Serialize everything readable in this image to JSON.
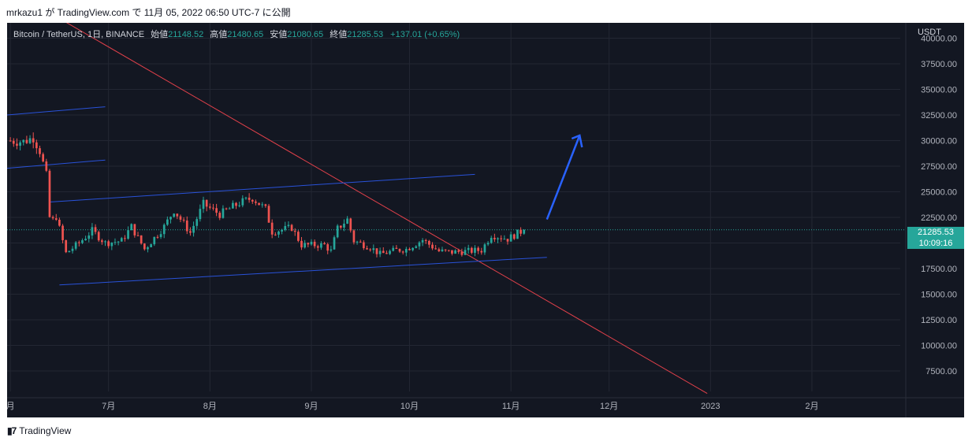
{
  "caption": "mrkazu1 が TradingView.com で 11月 05, 2022 06:50 UTC-7 に公開",
  "legend": {
    "symbol": "Bitcoin / TetherUS, 1日, BINANCE",
    "open_label": "始値",
    "open": "21148.52",
    "high_label": "高値",
    "high": "21480.65",
    "low_label": "安値",
    "low": "21080.65",
    "close_label": "終値",
    "close": "21285.53",
    "change": "+137.01 (+0.65%)"
  },
  "currency": "USDT",
  "last_price": "21285.53",
  "countdown": "10:09:16",
  "footer": "TradingView",
  "colors": {
    "background": "#131722",
    "up": "#26a69a",
    "down": "#ef5350",
    "trendline": "#e0404a",
    "channel": "#2952d9",
    "arrow": "#2962ff",
    "grid": "#232733"
  },
  "chart_data": {
    "type": "candlestick",
    "ylim": [
      5500,
      41500
    ],
    "y_ticks": [
      "40000.00",
      "37500.00",
      "35000.00",
      "32500.00",
      "30000.00",
      "27500.00",
      "25000.00",
      "22500.00",
      "20000.00",
      "17500.00",
      "15000.00",
      "12500.00",
      "10000.00",
      "7500.00"
    ],
    "x_ticks": [
      "月",
      "7月",
      "8月",
      "9月",
      "10月",
      "11月",
      "12月",
      "2023",
      "2月"
    ],
    "x_tick_dates": [
      "2022-06-01",
      "2022-07-01",
      "2022-08-01",
      "2022-09-01",
      "2022-10-01",
      "2022-11-01",
      "2022-12-01",
      "2023-01-01",
      "2023-02-01"
    ],
    "x_range": [
      "2022-05-31",
      "2023-02-28"
    ],
    "anchors": [
      [
        "2022-05-31",
        30000
      ],
      [
        "2022-06-05",
        29900
      ],
      [
        "2022-06-08",
        30300
      ],
      [
        "2022-06-10",
        29000
      ],
      [
        "2022-06-12",
        26600
      ],
      [
        "2022-06-13",
        22500
      ],
      [
        "2022-06-14",
        22200
      ],
      [
        "2022-06-15",
        22600
      ],
      [
        "2022-06-18",
        19000
      ],
      [
        "2022-06-22",
        20000
      ],
      [
        "2022-06-26",
        21200
      ],
      [
        "2022-06-30",
        20000
      ],
      [
        "2022-07-05",
        20200
      ],
      [
        "2022-07-08",
        21600
      ],
      [
        "2022-07-12",
        19400
      ],
      [
        "2022-07-18",
        21600
      ],
      [
        "2022-07-21",
        23200
      ],
      [
        "2022-07-26",
        21000
      ],
      [
        "2022-07-30",
        23800
      ],
      [
        "2022-08-04",
        22800
      ],
      [
        "2022-08-10",
        23900
      ],
      [
        "2022-08-14",
        24400
      ],
      [
        "2022-08-18",
        23300
      ],
      [
        "2022-08-20",
        21100
      ],
      [
        "2022-08-26",
        21500
      ],
      [
        "2022-08-29",
        19800
      ],
      [
        "2022-09-05",
        19800
      ],
      [
        "2022-09-07",
        19200
      ],
      [
        "2022-09-09",
        21400
      ],
      [
        "2022-09-12",
        22300
      ],
      [
        "2022-09-14",
        20200
      ],
      [
        "2022-09-19",
        19600
      ],
      [
        "2022-09-22",
        18900
      ],
      [
        "2022-09-27",
        19300
      ],
      [
        "2022-09-30",
        19400
      ],
      [
        "2022-10-05",
        20300
      ],
      [
        "2022-10-10",
        19200
      ],
      [
        "2022-10-14",
        19100
      ],
      [
        "2022-10-19",
        19200
      ],
      [
        "2022-10-23",
        19300
      ],
      [
        "2022-10-26",
        20800
      ],
      [
        "2022-10-31",
        20400
      ],
      [
        "2022-11-05",
        21285.53
      ]
    ],
    "drawings": {
      "red_trendline": [
        [
          "2022-06-01",
          44700
        ],
        [
          "2022-12-31",
          5300
        ]
      ],
      "channel_lines": [
        [
          [
            "2022-05-31",
            32500
          ],
          [
            "2022-06-30",
            33300
          ]
        ],
        [
          [
            "2022-05-31",
            27300
          ],
          [
            "2022-06-30",
            28100
          ]
        ],
        [
          [
            "2022-06-13",
            24000
          ],
          [
            "2022-10-21",
            26700
          ]
        ],
        [
          [
            "2022-06-16",
            15900
          ],
          [
            "2022-11-12",
            18600
          ]
        ]
      ],
      "arrow": [
        [
          "2022-11-12",
          22300
        ],
        [
          "2022-11-22",
          30500
        ]
      ]
    }
  }
}
